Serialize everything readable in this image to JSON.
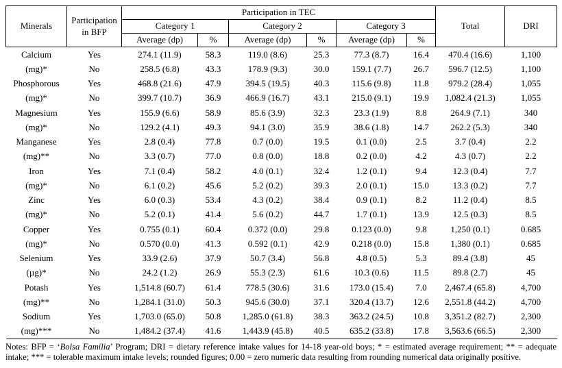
{
  "header": {
    "minerals": "Minerals",
    "bfp": "Participation in BFP",
    "tec": "Participation in TEC",
    "categories": [
      "Category 1",
      "Category 2",
      "Category 3"
    ],
    "avg_label": "Average (dp)",
    "pct_label": "%",
    "total": "Total",
    "dri": "DRI"
  },
  "rows": [
    {
      "mineral": "Calcium",
      "bfp": "Yes",
      "c1_avg": "274.1 (11.9)",
      "c1_pct": "58.3",
      "c2_avg": "119.0 (8.6)",
      "c2_pct": "25.3",
      "c3_avg": "77.3 (8.7)",
      "c3_pct": "16.4",
      "total": "470.4 (16.6)",
      "dri": "1,100"
    },
    {
      "mineral": "(mg)*",
      "bfp": "No",
      "c1_avg": "258.5 (6.8)",
      "c1_pct": "43.3",
      "c2_avg": "178.9 (9.3)",
      "c2_pct": "30.0",
      "c3_avg": "159.1 (7.7)",
      "c3_pct": "26.7",
      "total": "596.7 (12.5)",
      "dri": "1,100"
    },
    {
      "mineral": "Phosphorous",
      "bfp": "Yes",
      "c1_avg": "468.8 (21.6)",
      "c1_pct": "47.9",
      "c2_avg": "394.5 (19.5)",
      "c2_pct": "40.3",
      "c3_avg": "115.6 (9.8)",
      "c3_pct": "11.8",
      "total": "979.2 (28.4)",
      "dri": "1,055"
    },
    {
      "mineral": "(mg)*",
      "bfp": "No",
      "c1_avg": "399.7 (10.7)",
      "c1_pct": "36.9",
      "c2_avg": "466.9 (16.7)",
      "c2_pct": "43.1",
      "c3_avg": "215.0 (9.1)",
      "c3_pct": "19.9",
      "total": "1,082.4 (21.3)",
      "dri": "1,055"
    },
    {
      "mineral": "Magnesium",
      "bfp": "Yes",
      "c1_avg": "155.9 (6.6)",
      "c1_pct": "58.9",
      "c2_avg": "85.6 (3.9)",
      "c2_pct": "32.3",
      "c3_avg": "23.3 (1.9)",
      "c3_pct": "8.8",
      "total": "264.9 (7.1)",
      "dri": "340"
    },
    {
      "mineral": "(mg)*",
      "bfp": "No",
      "c1_avg": "129.2 (4.1)",
      "c1_pct": "49.3",
      "c2_avg": "94.1 (3.0)",
      "c2_pct": "35.9",
      "c3_avg": "38.6 (1.8)",
      "c3_pct": "14.7",
      "total": "262.2 (5.3)",
      "dri": "340"
    },
    {
      "mineral": "Manganese",
      "bfp": "Yes",
      "c1_avg": "2.8 (0.4)",
      "c1_pct": "77.8",
      "c2_avg": "0.7 (0.0)",
      "c2_pct": "19.5",
      "c3_avg": "0.1 (0.0)",
      "c3_pct": "2.5",
      "total": "3.7 (0.4)",
      "dri": "2.2"
    },
    {
      "mineral": "(mg)**",
      "bfp": "No",
      "c1_avg": "3.3 (0.7)",
      "c1_pct": "77.0",
      "c2_avg": "0.8 (0.0)",
      "c2_pct": "18.8",
      "c3_avg": "0.2 (0.0)",
      "c3_pct": "4.2",
      "total": "4.3 (0.7)",
      "dri": "2.2"
    },
    {
      "mineral": "Iron",
      "bfp": "Yes",
      "c1_avg": "7.1 (0.4)",
      "c1_pct": "58.2",
      "c2_avg": "4.0 (0.1)",
      "c2_pct": "32.4",
      "c3_avg": "1.2 (0.1)",
      "c3_pct": "9.4",
      "total": "12.3 (0.4)",
      "dri": "7.7"
    },
    {
      "mineral": "(mg)*",
      "bfp": "No",
      "c1_avg": "6.1 (0.2)",
      "c1_pct": "45.6",
      "c2_avg": "5.2 (0.2)",
      "c2_pct": "39.3",
      "c3_avg": "2.0 (0.1)",
      "c3_pct": "15.0",
      "total": "13.3 (0.2)",
      "dri": "7.7"
    },
    {
      "mineral": "Zinc",
      "bfp": "Yes",
      "c1_avg": "6.0 (0.3)",
      "c1_pct": "53.4",
      "c2_avg": "4.3 (0.2)",
      "c2_pct": "38.4",
      "c3_avg": "0.9 (0.1)",
      "c3_pct": "8.2",
      "total": "11.2 (0.4)",
      "dri": "8.5"
    },
    {
      "mineral": "(mg)*",
      "bfp": "No",
      "c1_avg": "5.2 (0.1)",
      "c1_pct": "41.4",
      "c2_avg": "5.6 (0.2)",
      "c2_pct": "44.7",
      "c3_avg": "1.7 (0.1)",
      "c3_pct": "13.9",
      "total": "12.5 (0.3)",
      "dri": "8.5"
    },
    {
      "mineral": "Copper",
      "bfp": "Yes",
      "c1_avg": "0.755 (0.1)",
      "c1_pct": "60.4",
      "c2_avg": "0.372 (0.0)",
      "c2_pct": "29.8",
      "c3_avg": "0.123 (0.0)",
      "c3_pct": "9.8",
      "total": "1,250 (0.1)",
      "dri": "0.685"
    },
    {
      "mineral": "(mg)*",
      "bfp": "No",
      "c1_avg": "0.570 (0.0)",
      "c1_pct": "41.3",
      "c2_avg": "0.592 (0.1)",
      "c2_pct": "42.9",
      "c3_avg": "0.218 (0.0)",
      "c3_pct": "15.8",
      "total": "1,380 (0.1)",
      "dri": "0.685"
    },
    {
      "mineral": "Selenium",
      "bfp": "Yes",
      "c1_avg": "33.9 (2.6)",
      "c1_pct": "37.9",
      "c2_avg": "50.7 (3.4)",
      "c2_pct": "56.8",
      "c3_avg": "4.8 (0.5)",
      "c3_pct": "5.3",
      "total": "89.4 (3.8)",
      "dri": "45"
    },
    {
      "mineral": "(µg)*",
      "bfp": "No",
      "c1_avg": "24.2 (1.2)",
      "c1_pct": "26.9",
      "c2_avg": "55.3 (2.3)",
      "c2_pct": "61.6",
      "c3_avg": "10.3 (0.6)",
      "c3_pct": "11.5",
      "total": "89.8 (2.7)",
      "dri": "45"
    },
    {
      "mineral": "Potash",
      "bfp": "Yes",
      "c1_avg": "1,514.8 (60.7)",
      "c1_pct": "61.4",
      "c2_avg": "778.5 (30.6)",
      "c2_pct": "31.6",
      "c3_avg": "173.0 (15.4)",
      "c3_pct": "7.0",
      "total": "2,467.4 (65.8)",
      "dri": "4,700"
    },
    {
      "mineral": "(mg)**",
      "bfp": "No",
      "c1_avg": "1,284.1 (31.0)",
      "c1_pct": "50.3",
      "c2_avg": "945.6 (30.0)",
      "c2_pct": "37.1",
      "c3_avg": "320.4 (13.7)",
      "c3_pct": "12.6",
      "total": "2,551.8 (44.2)",
      "dri": "4,700"
    },
    {
      "mineral": "Sodium",
      "bfp": "Yes",
      "c1_avg": "1,703.0 (65.0)",
      "c1_pct": "50.8",
      "c2_avg": "1,285.0 (61.8)",
      "c2_pct": "38.3",
      "c3_avg": "363.2 (24.5)",
      "c3_pct": "10.8",
      "total": "3,351.2 (82.7)",
      "dri": "2,300"
    },
    {
      "mineral": "(mg)***",
      "bfp": "No",
      "c1_avg": "1,484.2 (37.4)",
      "c1_pct": "41.6",
      "c2_avg": "1,443.9 (45.8)",
      "c2_pct": "40.5",
      "c3_avg": "635.2 (33.8)",
      "c3_pct": "17.8",
      "total": "3,563.6 (66.5)",
      "dri": "2,300"
    }
  ],
  "notes": {
    "prefix": "Notes: BFP = ‘",
    "italic": "Bolsa Família",
    "suffix": "’ Program; DRI = dietary reference intake values for 14-18 year-old boys; * = estimated average requirement; ** = adequate intake; *** = tolerable maximum intake levels; rounded figures; 0.00 = zero numeric data resulting from rounding numerical data originally positive."
  }
}
